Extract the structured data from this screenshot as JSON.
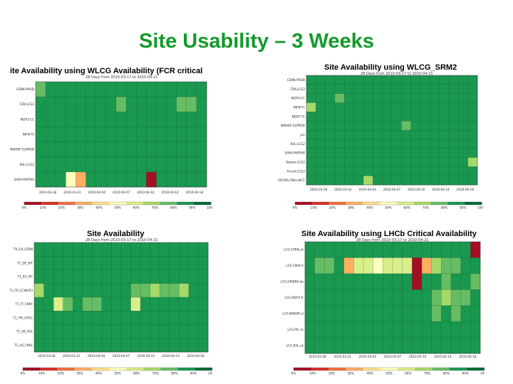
{
  "slide": {
    "title": "Site Usability – 3 Weeks"
  },
  "colors": {
    "scale": [
      "#a50f26",
      "#d73027",
      "#f46d43",
      "#fdae61",
      "#fee08b",
      "#ffffbf",
      "#d9ef8b",
      "#a6d96a",
      "#66bd63",
      "#1a9850",
      "#006837"
    ]
  },
  "chart_data": [
    {
      "type": "heatmap",
      "title": "ite Availability using WLCG Availability (FCR critical",
      "subtitle": "28 Days from 2010-03-17 to 2010-04-21",
      "rows": [
        "CERN-PROD",
        "FZK-LCG2",
        "IN2P3-CC",
        "INFN-T1",
        "NIKHEF-ELPROD",
        "RAL-LCG2",
        "SARA-MATRIX"
      ],
      "x_tick_labels": [
        "2010-03-28",
        "2010-03-31",
        "2010-04-04",
        "2010-04-07",
        "2010-04-10",
        "2010-04-14",
        "2010-04-18"
      ],
      "colorbar_ticks": [
        "0%",
        "10%",
        "20%",
        "30%",
        "40%",
        "50%",
        "60%",
        "70%",
        "80%",
        "90%",
        "100%"
      ],
      "value_range": [
        0,
        100
      ],
      "cells": [
        [
          75,
          92,
          92,
          92,
          92,
          92,
          92,
          92,
          92,
          92,
          92,
          92,
          92,
          92,
          92,
          92,
          92
        ],
        [
          90,
          90,
          90,
          90,
          90,
          90,
          90,
          90,
          80,
          90,
          90,
          90,
          90,
          90,
          82,
          82,
          90
        ],
        [
          92,
          92,
          92,
          92,
          92,
          92,
          92,
          92,
          92,
          92,
          92,
          92,
          92,
          92,
          92,
          92,
          92
        ],
        [
          92,
          92,
          92,
          92,
          92,
          92,
          92,
          92,
          92,
          92,
          92,
          92,
          92,
          92,
          92,
          92,
          92
        ],
        [
          92,
          92,
          92,
          92,
          92,
          92,
          92,
          92,
          92,
          92,
          92,
          92,
          92,
          92,
          92,
          85,
          92
        ],
        [
          92,
          92,
          92,
          92,
          92,
          92,
          92,
          92,
          92,
          92,
          92,
          92,
          92,
          92,
          92,
          85,
          92
        ],
        [
          92,
          92,
          92,
          45,
          30,
          92,
          92,
          92,
          92,
          92,
          92,
          0,
          92,
          92,
          92,
          85,
          92
        ]
      ]
    },
    {
      "type": "heatmap",
      "title": "Site Availability using WLCG_SRM2",
      "subtitle": "28 Days from 2010-03-17 to 2010-04-21",
      "rows": [
        "CERN-PROD",
        "FZK-LCG2",
        "IN2P3-CC",
        "INFN-T1",
        "NDGF-T1",
        "NIKHEF-ELPROD",
        "pic",
        "RAL-LCG2",
        "SARA-MATRIX",
        "Taiwan-LCG2",
        "Triumf-LCG2",
        "USCMS-FNAL-WC1"
      ],
      "x_tick_labels": [
        "2010-03-28",
        "2010-03-31",
        "2010-04-04",
        "2010-04-07",
        "2010-04-10",
        "2010-04-14",
        "2010-04-18"
      ],
      "colorbar_ticks": [
        "0%",
        "10%",
        "20%",
        "30%",
        "40%",
        "50%",
        "60%",
        "70%",
        "80%",
        "90%",
        "100%"
      ],
      "value_range": [
        0,
        100
      ],
      "cells": [
        [
          92,
          92,
          92,
          92,
          92,
          92,
          92,
          92,
          92,
          92,
          92,
          92,
          92,
          92,
          92,
          92,
          92,
          92
        ],
        [
          92,
          92,
          92,
          92,
          92,
          92,
          85,
          92,
          92,
          92,
          92,
          92,
          92,
          92,
          92,
          92,
          92,
          92
        ],
        [
          92,
          92,
          92,
          80,
          92,
          85,
          92,
          92,
          92,
          92,
          92,
          85,
          92,
          92,
          92,
          92,
          92,
          92
        ],
        [
          70,
          92,
          92,
          92,
          92,
          92,
          92,
          92,
          92,
          92,
          92,
          92,
          92,
          92,
          92,
          92,
          92,
          92
        ],
        [
          92,
          92,
          92,
          92,
          92,
          92,
          92,
          92,
          92,
          92,
          92,
          92,
          92,
          92,
          92,
          92,
          92,
          92
        ],
        [
          92,
          92,
          92,
          92,
          92,
          92,
          92,
          92,
          85,
          85,
          82,
          92,
          92,
          92,
          92,
          92,
          92,
          92
        ],
        [
          92,
          92,
          92,
          92,
          92,
          92,
          92,
          92,
          92,
          85,
          92,
          92,
          92,
          92,
          92,
          92,
          92,
          92
        ],
        [
          92,
          92,
          92,
          92,
          92,
          92,
          92,
          92,
          92,
          92,
          92,
          92,
          92,
          92,
          92,
          92,
          92,
          92
        ],
        [
          92,
          92,
          92,
          92,
          85,
          92,
          92,
          92,
          92,
          92,
          92,
          92,
          92,
          92,
          92,
          92,
          92,
          92
        ],
        [
          92,
          92,
          92,
          92,
          85,
          92,
          92,
          92,
          92,
          92,
          92,
          92,
          92,
          92,
          92,
          92,
          92,
          70
        ],
        [
          92,
          92,
          92,
          92,
          92,
          92,
          92,
          92,
          92,
          92,
          92,
          92,
          92,
          92,
          92,
          92,
          92,
          92
        ],
        [
          92,
          92,
          92,
          92,
          92,
          92,
          70,
          92,
          92,
          92,
          92,
          92,
          92,
          92,
          92,
          92,
          92,
          92
        ]
      ]
    },
    {
      "type": "heatmap",
      "title": "Site Availability",
      "subtitle": "28 Days from 2010-03-17 to 2010-04-21",
      "rows": [
        "T0_CH_CERN",
        "T1_DE_KIT",
        "T1_ES_PIC",
        "T1_FR_CCIN2P3",
        "T1_IT_CNAF",
        "T1_TW_ASGC",
        "T1_UK_RAL",
        "T1_US_FNAL"
      ],
      "x_tick_labels": [
        "2010-03-28",
        "2010-03-31",
        "2010-04-04",
        "2010-04-07",
        "2010-04-10",
        "2010-04-14",
        "2010-04-18"
      ],
      "colorbar_ticks": [
        "0%",
        "10%",
        "20%",
        "30%",
        "40%",
        "50%",
        "60%",
        "70%",
        "80%",
        "90%",
        "100%"
      ],
      "value_range": [
        0,
        100
      ],
      "cells": [
        [
          92,
          92,
          92,
          92,
          92,
          92,
          92,
          92,
          92,
          92,
          92,
          92,
          92,
          92,
          92,
          92,
          92,
          92
        ],
        [
          92,
          92,
          92,
          92,
          92,
          92,
          92,
          92,
          92,
          92,
          92,
          92,
          92,
          92,
          92,
          92,
          92,
          92
        ],
        [
          92,
          92,
          92,
          92,
          92,
          92,
          92,
          92,
          92,
          92,
          92,
          92,
          92,
          92,
          92,
          92,
          92,
          92
        ],
        [
          65,
          92,
          92,
          92,
          92,
          92,
          92,
          92,
          92,
          92,
          80,
          80,
          70,
          80,
          80,
          70,
          92,
          92
        ],
        [
          92,
          92,
          60,
          80,
          92,
          80,
          80,
          92,
          92,
          92,
          55,
          92,
          92,
          92,
          92,
          92,
          92,
          92
        ],
        [
          92,
          92,
          92,
          92,
          92,
          92,
          92,
          92,
          92,
          92,
          92,
          92,
          92,
          92,
          92,
          92,
          92,
          92
        ],
        [
          92,
          92,
          92,
          92,
          92,
          92,
          92,
          92,
          92,
          92,
          92,
          92,
          92,
          92,
          92,
          92,
          92,
          92
        ],
        [
          92,
          92,
          92,
          92,
          92,
          92,
          92,
          92,
          92,
          92,
          92,
          92,
          92,
          92,
          92,
          92,
          92,
          92
        ]
      ]
    },
    {
      "type": "heatmap",
      "title": "Site Availability using LHCb Critical Availability",
      "subtitle": "28 Days from 2010-03-17 to 2010-04-21",
      "rows": [
        "LCG.CERN.ch",
        "LCG.CNAF.it",
        "LCG.GRIDKA.de",
        "LCG.IN2P3.fr",
        "LCG.NIKHEF.nl",
        "LCG.PIC.es",
        "LCG.RAL.uk"
      ],
      "x_tick_labels": [
        "2010-03-28",
        "2010-03-31",
        "2010-04-04",
        "2010-04-07",
        "2010-04-10",
        "2010-04-14",
        "2010-04-18"
      ],
      "colorbar_ticks": [
        "0%",
        "10%",
        "20%",
        "30%",
        "40%",
        "50%",
        "60%",
        "70%",
        "80%",
        "90%",
        "100%"
      ],
      "value_range": [
        0,
        100
      ],
      "cells": [
        [
          92,
          92,
          92,
          92,
          92,
          92,
          92,
          92,
          92,
          92,
          92,
          92,
          92,
          92,
          92,
          92,
          92,
          0
        ],
        [
          92,
          82,
          75,
          92,
          30,
          55,
          55,
          50,
          55,
          60,
          60,
          0,
          30,
          65,
          80,
          80,
          92,
          92
        ],
        [
          92,
          92,
          92,
          92,
          92,
          92,
          92,
          92,
          92,
          92,
          92,
          0,
          92,
          92,
          80,
          92,
          92,
          80
        ],
        [
          92,
          92,
          92,
          92,
          92,
          92,
          92,
          92,
          92,
          92,
          92,
          92,
          92,
          75,
          65,
          75,
          80,
          92
        ],
        [
          92,
          92,
          92,
          92,
          92,
          92,
          92,
          92,
          92,
          92,
          92,
          92,
          92,
          80,
          92,
          80,
          92,
          92
        ],
        [
          92,
          92,
          92,
          92,
          92,
          92,
          92,
          92,
          92,
          92,
          92,
          92,
          92,
          92,
          92,
          92,
          92,
          92
        ],
        [
          92,
          92,
          92,
          92,
          92,
          92,
          92,
          92,
          92,
          92,
          92,
          92,
          92,
          92,
          92,
          92,
          92,
          85
        ]
      ]
    }
  ]
}
